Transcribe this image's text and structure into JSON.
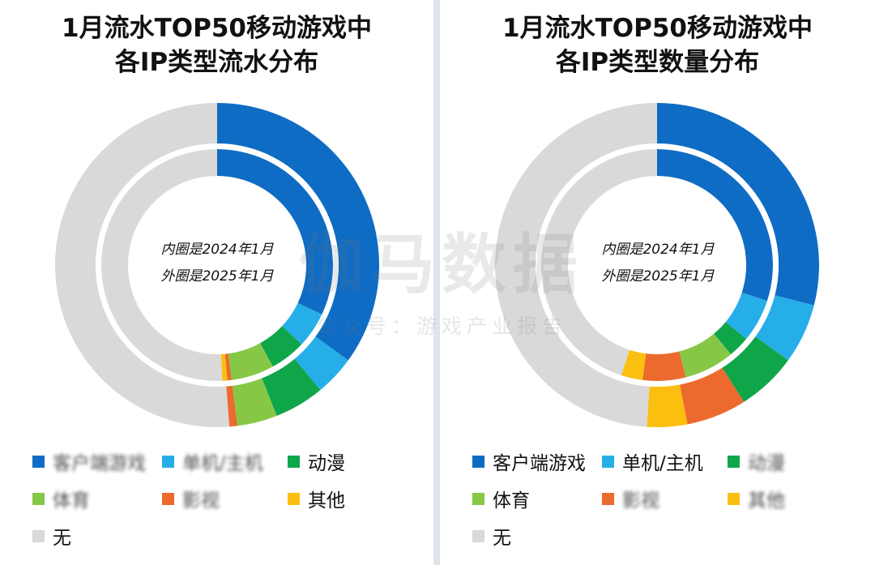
{
  "watermark": {
    "main": "伽马数据",
    "sub": "公众号：游戏产业报告"
  },
  "chart_data": [
    {
      "type": "pie",
      "title_line1": "1月流水TOP50移动游戏中",
      "title_line2": "各IP类型流水分布",
      "center_line1": "内圈是2024年1月",
      "center_line2": "外圈是2025年1月",
      "categories": [
        "客户端游戏",
        "单机/主机",
        "动漫",
        "体育",
        "影视",
        "其他",
        "无"
      ],
      "colors": [
        "#0f6cc4",
        "#26aee8",
        "#0fa64a",
        "#86c846",
        "#ec6a2d",
        "#fbbf10",
        "#d9d9d9"
      ],
      "series": [
        {
          "name": "内圈是2024年1月",
          "values": [
            32,
            5,
            5,
            6,
            0.6,
            0.7,
            50.7
          ]
        },
        {
          "name": "外圈是2025年1月",
          "values": [
            35,
            4,
            5,
            4,
            0.8,
            0,
            51.2
          ]
        }
      ],
      "legend": [
        {
          "label": "客户端游戏",
          "blurred": true
        },
        {
          "label": "单机/主机",
          "blurred": true
        },
        {
          "label": "动漫",
          "blurred": false
        },
        {
          "label": "体育",
          "blurred": true
        },
        {
          "label": "影视",
          "blurred": true
        },
        {
          "label": "其他",
          "blurred": false
        },
        {
          "label": "无",
          "blurred": false
        }
      ]
    },
    {
      "type": "pie",
      "title_line1": "1月流水TOP50移动游戏中",
      "title_line2": "各IP类型数量分布",
      "center_line1": "内圈是2024年1月",
      "center_line2": "外圈是2025年1月",
      "categories": [
        "客户端游戏",
        "单机/主机",
        "动漫",
        "体育",
        "影视",
        "其他",
        "无"
      ],
      "colors": [
        "#0f6cc4",
        "#26aee8",
        "#0fa64a",
        "#86c846",
        "#ec6a2d",
        "#fbbf10",
        "#d9d9d9"
      ],
      "series": [
        {
          "name": "内圈是2024年1月",
          "values": [
            30,
            6,
            3,
            7,
            6,
            3,
            45
          ]
        },
        {
          "name": "外圈是2025年1月",
          "values": [
            29,
            6,
            6,
            0,
            6,
            4,
            49
          ]
        }
      ],
      "legend": [
        {
          "label": "客户端游戏",
          "blurred": false
        },
        {
          "label": "单机/主机",
          "blurred": false
        },
        {
          "label": "动漫",
          "blurred": true
        },
        {
          "label": "体育",
          "blurred": false
        },
        {
          "label": "影视",
          "blurred": true
        },
        {
          "label": "其他",
          "blurred": true
        },
        {
          "label": "无",
          "blurred": false
        }
      ]
    }
  ]
}
